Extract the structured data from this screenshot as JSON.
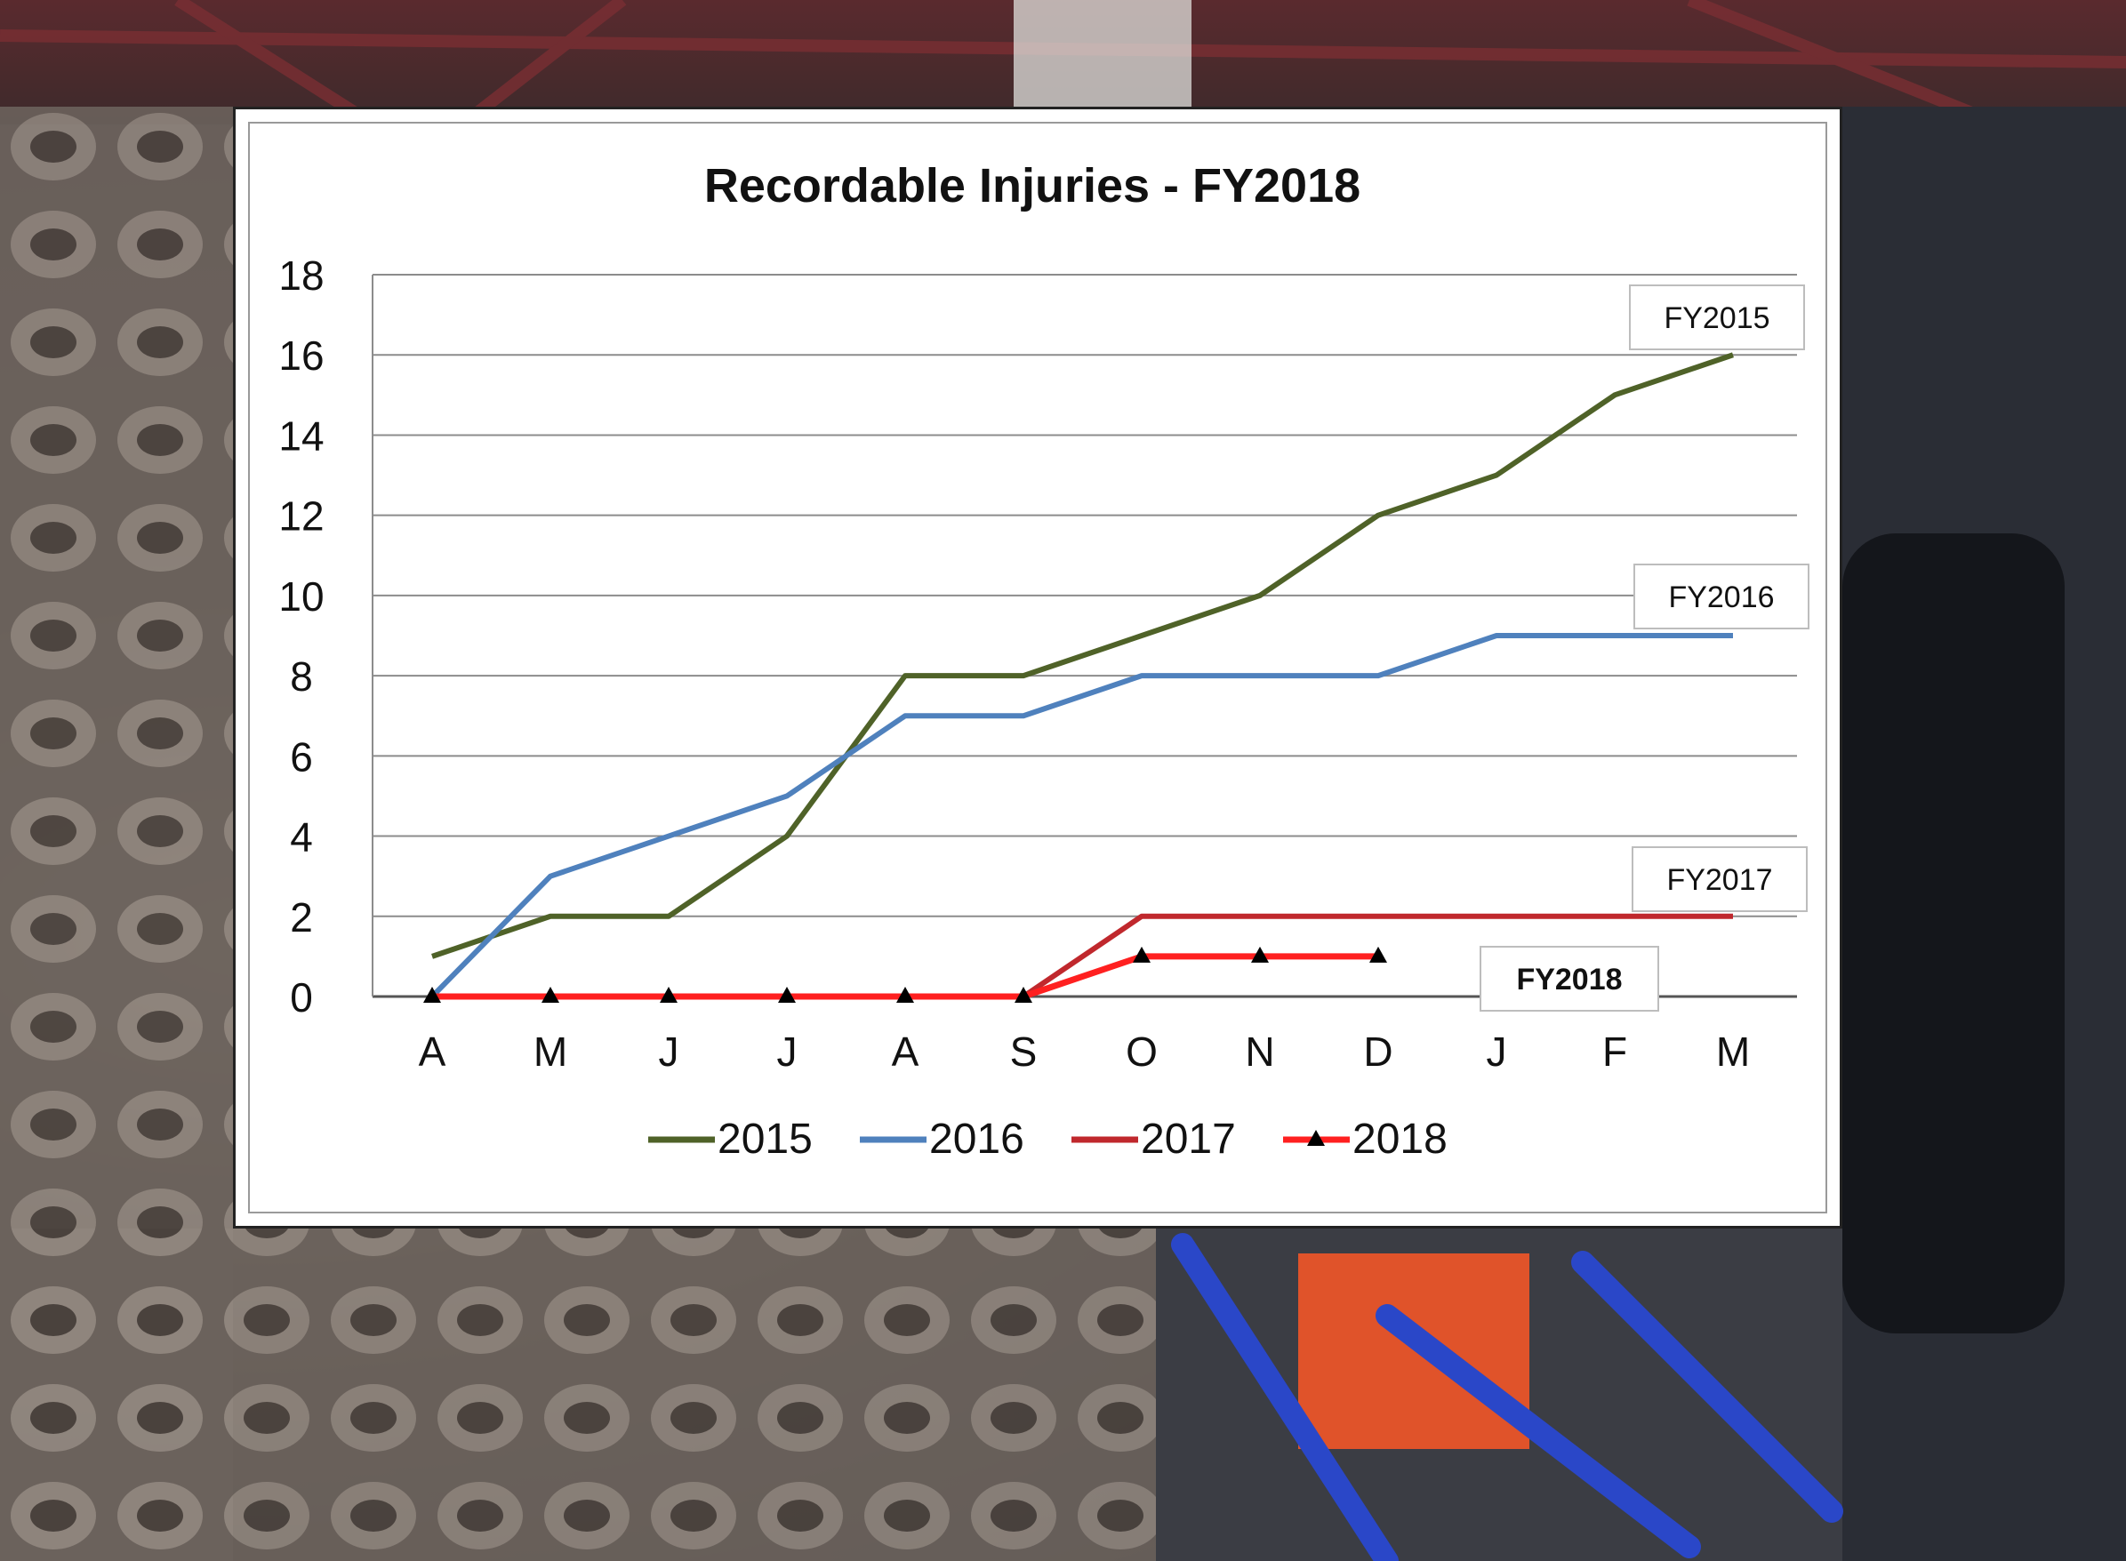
{
  "chart_data": {
    "type": "line",
    "title": "Recordable Injuries - FY2018",
    "xlabel": "",
    "ylabel": "",
    "categories": [
      "A",
      "M",
      "J",
      "J",
      "A",
      "S",
      "O",
      "N",
      "D",
      "J",
      "F",
      "M"
    ],
    "ylim": [
      0,
      18
    ],
    "yticks": [
      0,
      2,
      4,
      6,
      8,
      10,
      12,
      14,
      16,
      18
    ],
    "grid": true,
    "legend_position": "bottom",
    "series": [
      {
        "name": "2015",
        "color": "#4f6228",
        "values": [
          1,
          2,
          2,
          4,
          8,
          8,
          9,
          10,
          12,
          13,
          15,
          16
        ],
        "marker": "none"
      },
      {
        "name": "2016",
        "color": "#4f81bd",
        "values": [
          0,
          3,
          4,
          5,
          7,
          7,
          8,
          8,
          8,
          9,
          9,
          9
        ],
        "marker": "none"
      },
      {
        "name": "2017",
        "color": "#c0282d",
        "values": [
          0,
          0,
          0,
          0,
          0,
          0,
          2,
          2,
          2,
          2,
          2,
          2
        ],
        "marker": "none"
      },
      {
        "name": "2018",
        "color": "#ff2020",
        "values": [
          0,
          0,
          0,
          0,
          0,
          0,
          1,
          1,
          1,
          null,
          null,
          null
        ],
        "marker": "triangle"
      }
    ],
    "annotations": [
      {
        "text": "FY2015",
        "series": "2015",
        "bold": false
      },
      {
        "text": "FY2016",
        "series": "2016",
        "bold": false
      },
      {
        "text": "FY2017",
        "series": "2017",
        "bold": false
      },
      {
        "text": "FY2018",
        "series": "2018",
        "bold": true
      }
    ]
  }
}
